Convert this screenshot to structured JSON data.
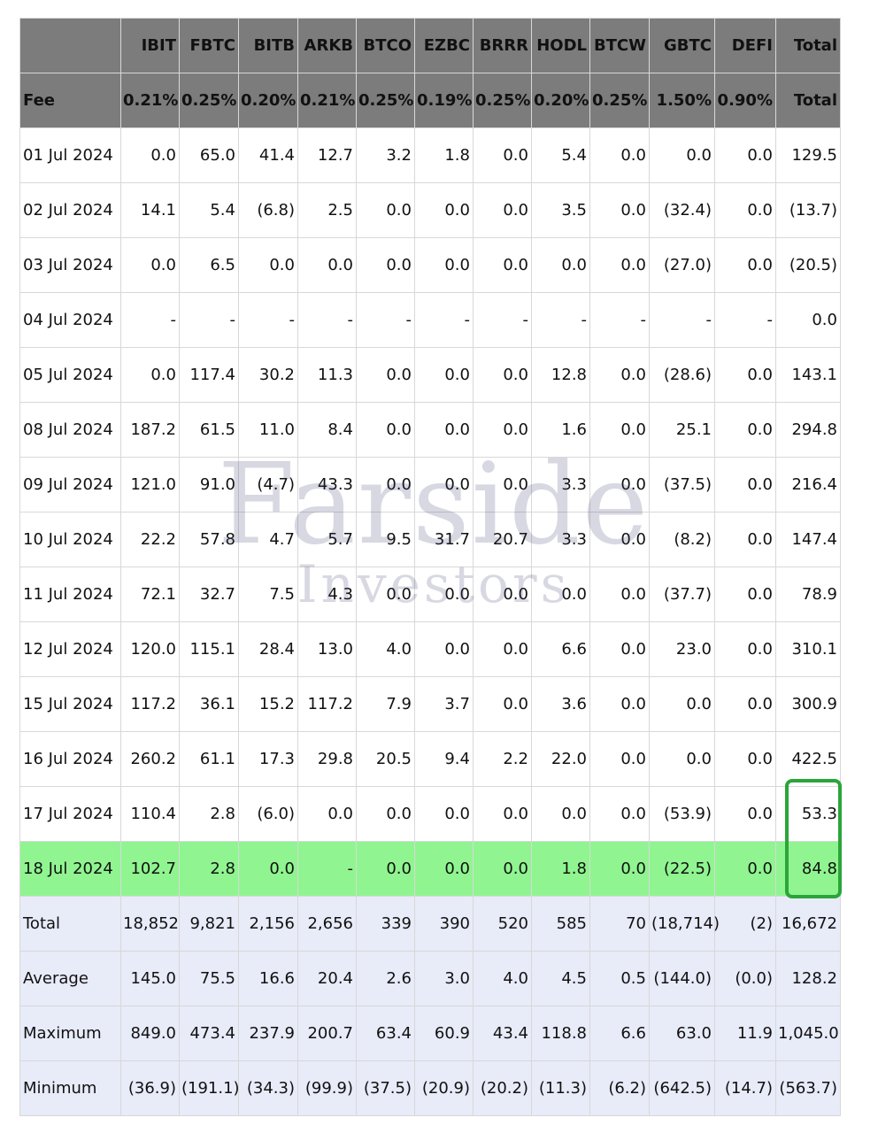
{
  "columns": [
    "",
    "IBIT",
    "FBTC",
    "BITB",
    "ARKB",
    "BTCO",
    "EZBC",
    "BRRR",
    "HODL",
    "BTCW",
    "GBTC",
    "DEFI",
    "Total"
  ],
  "fee_row": [
    "Fee",
    "0.21%",
    "0.25%",
    "0.20%",
    "0.21%",
    "0.25%",
    "0.19%",
    "0.25%",
    "0.20%",
    "0.25%",
    "1.50%",
    "0.90%",
    "Total"
  ],
  "rows": [
    {
      "date": "01 Jul 2024",
      "values": [
        "0.0",
        "65.0",
        "41.4",
        "12.7",
        "3.2",
        "1.8",
        "0.0",
        "5.4",
        "0.0",
        "0.0",
        "0.0",
        "129.5"
      ]
    },
    {
      "date": "02 Jul 2024",
      "values": [
        "14.1",
        "5.4",
        "(6.8)",
        "2.5",
        "0.0",
        "0.0",
        "0.0",
        "3.5",
        "0.0",
        "(32.4)",
        "0.0",
        "(13.7)"
      ]
    },
    {
      "date": "03 Jul 2024",
      "values": [
        "0.0",
        "6.5",
        "0.0",
        "0.0",
        "0.0",
        "0.0",
        "0.0",
        "0.0",
        "0.0",
        "(27.0)",
        "0.0",
        "(20.5)"
      ]
    },
    {
      "date": "04 Jul 2024",
      "values": [
        "-",
        "-",
        "-",
        "-",
        "-",
        "-",
        "-",
        "-",
        "-",
        "-",
        "-",
        "0.0"
      ]
    },
    {
      "date": "05 Jul 2024",
      "values": [
        "0.0",
        "117.4",
        "30.2",
        "11.3",
        "0.0",
        "0.0",
        "0.0",
        "12.8",
        "0.0",
        "(28.6)",
        "0.0",
        "143.1"
      ]
    },
    {
      "date": "08 Jul 2024",
      "values": [
        "187.2",
        "61.5",
        "11.0",
        "8.4",
        "0.0",
        "0.0",
        "0.0",
        "1.6",
        "0.0",
        "25.1",
        "0.0",
        "294.8"
      ]
    },
    {
      "date": "09 Jul 2024",
      "values": [
        "121.0",
        "91.0",
        "(4.7)",
        "43.3",
        "0.0",
        "0.0",
        "0.0",
        "3.3",
        "0.0",
        "(37.5)",
        "0.0",
        "216.4"
      ]
    },
    {
      "date": "10 Jul 2024",
      "values": [
        "22.2",
        "57.8",
        "4.7",
        "5.7",
        "9.5",
        "31.7",
        "20.7",
        "3.3",
        "0.0",
        "(8.2)",
        "0.0",
        "147.4"
      ]
    },
    {
      "date": "11 Jul 2024",
      "values": [
        "72.1",
        "32.7",
        "7.5",
        "4.3",
        "0.0",
        "0.0",
        "0.0",
        "0.0",
        "0.0",
        "(37.7)",
        "0.0",
        "78.9"
      ]
    },
    {
      "date": "12 Jul 2024",
      "values": [
        "120.0",
        "115.1",
        "28.4",
        "13.0",
        "4.0",
        "0.0",
        "0.0",
        "6.6",
        "0.0",
        "23.0",
        "0.0",
        "310.1"
      ]
    },
    {
      "date": "15 Jul 2024",
      "values": [
        "117.2",
        "36.1",
        "15.2",
        "117.2",
        "7.9",
        "3.7",
        "0.0",
        "3.6",
        "0.0",
        "0.0",
        "0.0",
        "300.9"
      ]
    },
    {
      "date": "16 Jul 2024",
      "values": [
        "260.2",
        "61.1",
        "17.3",
        "29.8",
        "20.5",
        "9.4",
        "2.2",
        "22.0",
        "0.0",
        "0.0",
        "0.0",
        "422.5"
      ]
    },
    {
      "date": "17 Jul 2024",
      "values": [
        "110.4",
        "2.8",
        "(6.0)",
        "0.0",
        "0.0",
        "0.0",
        "0.0",
        "0.0",
        "0.0",
        "(53.9)",
        "0.0",
        "53.3"
      ]
    },
    {
      "date": "18 Jul 2024",
      "values": [
        "102.7",
        "2.8",
        "0.0",
        "-",
        "0.0",
        "0.0",
        "0.0",
        "1.8",
        "0.0",
        "(22.5)",
        "0.0",
        "84.8"
      ],
      "highlighted": true
    }
  ],
  "stats": [
    {
      "label": "Total",
      "values": [
        "18,852",
        "9,821",
        "2,156",
        "2,656",
        "339",
        "390",
        "520",
        "585",
        "70",
        "(18,714)",
        "(2)",
        "16,672"
      ]
    },
    {
      "label": "Average",
      "values": [
        "145.0",
        "75.5",
        "16.6",
        "20.4",
        "2.6",
        "3.0",
        "4.0",
        "4.5",
        "0.5",
        "(144.0)",
        "(0.0)",
        "128.2"
      ]
    },
    {
      "label": "Maximum",
      "values": [
        "849.0",
        "473.4",
        "237.9",
        "200.7",
        "63.4",
        "60.9",
        "43.4",
        "118.8",
        "6.6",
        "63.0",
        "11.9",
        "1,045.0"
      ]
    },
    {
      "label": "Minimum",
      "values": [
        "(36.9)",
        "(191.1)",
        "(34.3)",
        "(99.9)",
        "(37.5)",
        "(20.9)",
        "(20.2)",
        "(11.3)",
        "(6.2)",
        "(642.5)",
        "(14.7)",
        "(563.7)"
      ]
    }
  ],
  "watermark": {
    "line1": "Farside",
    "line2": "Investors"
  },
  "colors": {
    "header_bg": "#7c7c7c",
    "highlight_row": "#90f590",
    "stats_bg": "#e8ebf8",
    "negative": "#e01414",
    "callout_border": "#2aa53a"
  }
}
